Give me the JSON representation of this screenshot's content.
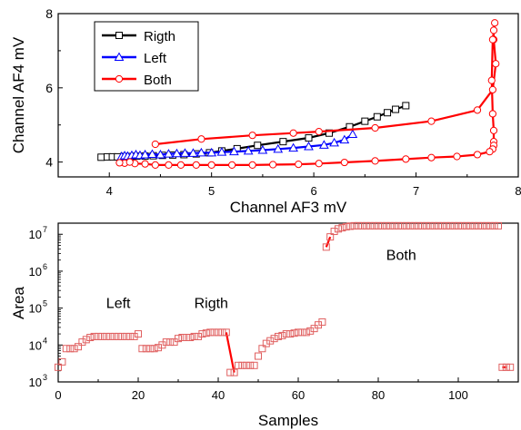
{
  "chart_data": [
    {
      "type": "line",
      "xlabel": "Channel AF3 mV",
      "ylabel": "Channel AF4 mV",
      "xlim": [
        3.5,
        8
      ],
      "ylim": [
        3.6,
        8
      ],
      "xticks": [
        4,
        5,
        6,
        7,
        8
      ],
      "yticks": [
        4,
        6,
        8
      ],
      "legend_position": "top-left",
      "series": [
        {
          "name": "Rigth",
          "color": "#000000",
          "marker": "square",
          "points": [
            [
              3.92,
              4.13
            ],
            [
              3.98,
              4.14
            ],
            [
              4.03,
              4.14
            ],
            [
              4.08,
              4.14
            ],
            [
              4.14,
              4.15
            ],
            [
              4.2,
              4.15
            ],
            [
              4.27,
              4.16
            ],
            [
              4.35,
              4.16
            ],
            [
              4.43,
              4.17
            ],
            [
              4.52,
              4.18
            ],
            [
              4.62,
              4.19
            ],
            [
              4.73,
              4.2
            ],
            [
              4.85,
              4.22
            ],
            [
              4.98,
              4.25
            ],
            [
              5.1,
              4.3
            ],
            [
              5.25,
              4.36
            ],
            [
              5.45,
              4.45
            ],
            [
              5.7,
              4.55
            ],
            [
              5.95,
              4.65
            ],
            [
              6.15,
              4.78
            ],
            [
              6.35,
              4.95
            ],
            [
              6.5,
              5.1
            ],
            [
              6.62,
              5.22
            ],
            [
              6.72,
              5.33
            ],
            [
              6.8,
              5.42
            ],
            [
              6.9,
              5.52
            ]
          ]
        },
        {
          "name": "Left",
          "color": "#0000ff",
          "marker": "triangle",
          "points": [
            [
              4.12,
              4.15
            ],
            [
              4.15,
              4.17
            ],
            [
              4.18,
              4.16
            ],
            [
              4.22,
              4.18
            ],
            [
              4.26,
              4.2
            ],
            [
              4.3,
              4.18
            ],
            [
              4.35,
              4.2
            ],
            [
              4.42,
              4.21
            ],
            [
              4.5,
              4.2
            ],
            [
              4.58,
              4.22
            ],
            [
              4.66,
              4.23
            ],
            [
              4.74,
              4.24
            ],
            [
              4.82,
              4.24
            ],
            [
              4.9,
              4.25
            ],
            [
              5.0,
              4.25
            ],
            [
              5.1,
              4.27
            ],
            [
              5.22,
              4.28
            ],
            [
              5.36,
              4.3
            ],
            [
              5.5,
              4.32
            ],
            [
              5.65,
              4.35
            ],
            [
              5.8,
              4.38
            ],
            [
              5.95,
              4.42
            ],
            [
              6.1,
              4.46
            ],
            [
              6.2,
              4.52
            ],
            [
              6.3,
              4.6
            ],
            [
              6.38,
              4.75
            ]
          ]
        },
        {
          "name": "Both",
          "color": "#ff0000",
          "marker": "circle",
          "points": [
            [
              4.45,
              4.48
            ],
            [
              4.9,
              4.62
            ],
            [
              5.4,
              4.72
            ],
            [
              5.8,
              4.78
            ],
            [
              6.05,
              4.82
            ],
            [
              6.6,
              4.92
            ],
            [
              7.15,
              5.1
            ],
            [
              7.6,
              5.4
            ],
            [
              7.75,
              5.95
            ],
            [
              7.78,
              6.65
            ],
            [
              7.76,
              7.3
            ],
            [
              7.76,
              7.55
            ],
            [
              7.77,
              7.75
            ],
            [
              7.75,
              7.3
            ],
            [
              7.74,
              6.2
            ],
            [
              7.75,
              5.3
            ],
            [
              7.76,
              4.85
            ],
            [
              7.76,
              4.55
            ],
            [
              7.76,
              4.45
            ],
            [
              7.75,
              4.35
            ],
            [
              7.72,
              4.28
            ],
            [
              7.6,
              4.2
            ],
            [
              7.4,
              4.15
            ],
            [
              7.15,
              4.12
            ],
            [
              6.9,
              4.08
            ],
            [
              6.6,
              4.03
            ],
            [
              6.3,
              3.99
            ],
            [
              6.05,
              3.96
            ],
            [
              5.85,
              3.94
            ],
            [
              5.6,
              3.93
            ],
            [
              5.4,
              3.92
            ],
            [
              5.2,
              3.92
            ],
            [
              5.0,
              3.92
            ],
            [
              4.85,
              3.92
            ],
            [
              4.7,
              3.92
            ],
            [
              4.58,
              3.92
            ],
            [
              4.45,
              3.92
            ],
            [
              4.35,
              3.95
            ],
            [
              4.25,
              3.96
            ],
            [
              4.15,
              3.97
            ],
            [
              4.1,
              3.98
            ],
            [
              4.2,
              4.0
            ]
          ]
        }
      ]
    },
    {
      "type": "scatter",
      "xlabel": "Samples",
      "ylabel": "Area",
      "yscale": "log",
      "xlim": [
        0,
        115
      ],
      "ylim": [
        1000,
        20000000
      ],
      "xticks": [
        0,
        20,
        40,
        60,
        80,
        100
      ],
      "ytick_labels": [
        {
          "value": 1000,
          "mant": "10",
          "exp": "3"
        },
        {
          "value": 10000,
          "mant": "10",
          "exp": "4"
        },
        {
          "value": 100000,
          "mant": "10",
          "exp": "5"
        },
        {
          "value": 1000000,
          "mant": "10",
          "exp": "6"
        },
        {
          "value": 10000000,
          "mant": "10",
          "exp": "7"
        }
      ],
      "annotations": [
        {
          "text": "Left",
          "x": 12,
          "y": 100000
        },
        {
          "text": "Rigth",
          "x": 34,
          "y": 100000
        },
        {
          "text": "Both",
          "x": 82,
          "y": 2000000
        }
      ],
      "marker_color": "#e06060",
      "line_color": "#ff0000",
      "values": [
        2500,
        3500,
        8000,
        8000,
        8000,
        9000,
        12000,
        14000,
        16000,
        17000,
        17000,
        17000,
        17000,
        17000,
        17000,
        17000,
        17000,
        17000,
        17000,
        17000,
        20000,
        8000,
        8000,
        8000,
        8000,
        8500,
        10000,
        12000,
        12000,
        12000,
        15000,
        16000,
        16000,
        16000,
        17000,
        17000,
        20000,
        21000,
        22000,
        22000,
        22000,
        22000,
        22000,
        1800,
        1800,
        2800,
        2800,
        2800,
        2800,
        2800,
        5000,
        8000,
        11000,
        13000,
        15000,
        17000,
        18000,
        20000,
        20000,
        21000,
        22000,
        22000,
        22000,
        24000,
        28000,
        35000,
        42000,
        4500000,
        8500000,
        12000000,
        14000000,
        15000000,
        16000000,
        16500000,
        17000000,
        17000000,
        17000000,
        17000000,
        17000000,
        17000000,
        17000000,
        17000000,
        17000000,
        17000000,
        17000000,
        17000000,
        17000000,
        17000000,
        17000000,
        17000000,
        17000000,
        17000000,
        17000000,
        17000000,
        17000000,
        17000000,
        17000000,
        17000000,
        17000000,
        17000000,
        17000000,
        17000000,
        17000000,
        17000000,
        17000000,
        17000000,
        17000000,
        17000000,
        17000000,
        17000000,
        17000000,
        2500,
        2500,
        2500
      ],
      "transition_segments": [
        [
          42,
          44
        ],
        [
          67,
          68
        ],
        [
          111,
          112
        ]
      ]
    }
  ]
}
